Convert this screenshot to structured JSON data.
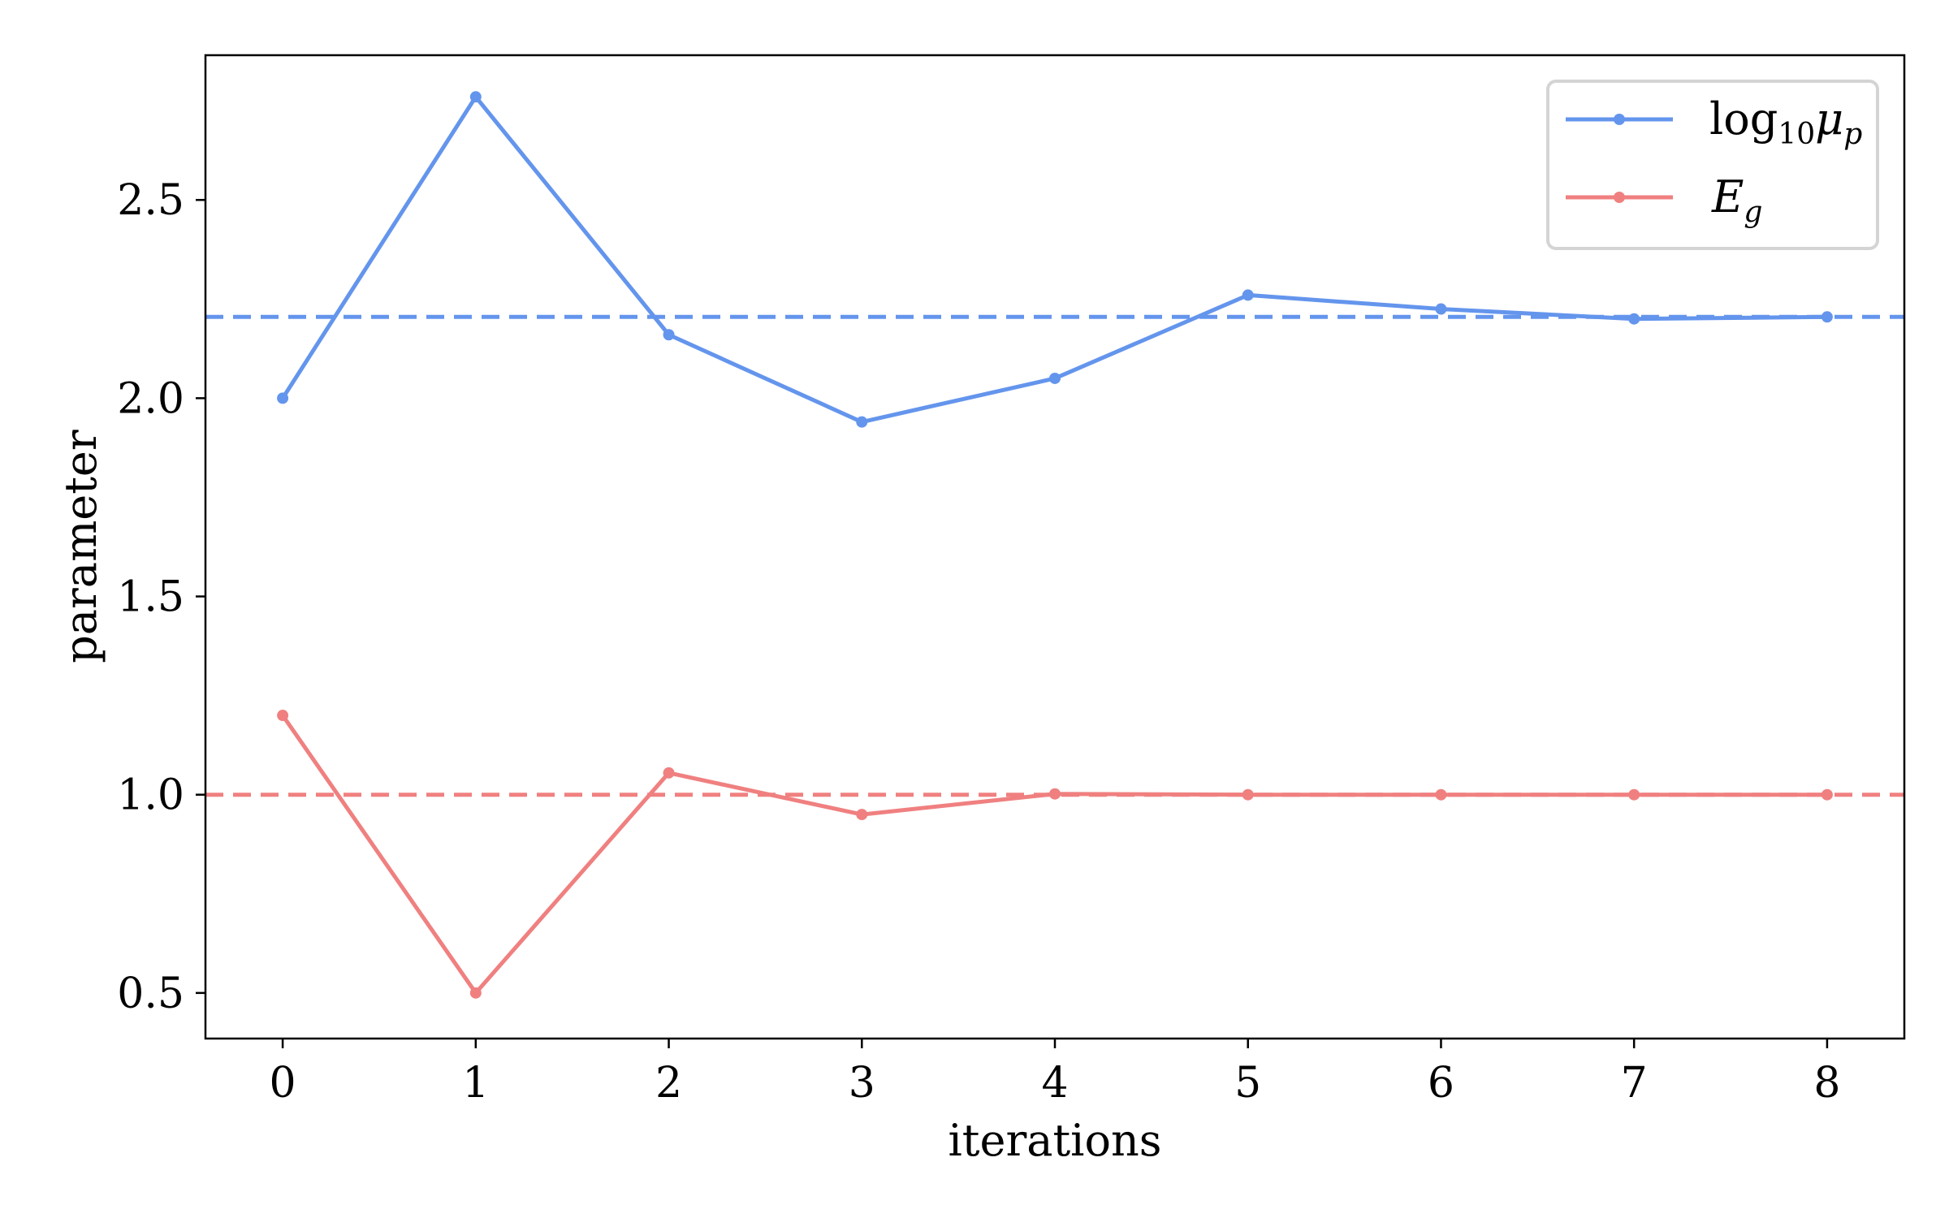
{
  "chart_data": {
    "type": "line",
    "title": "",
    "xlabel": "iterations",
    "ylabel": "parameter",
    "xlim": [
      -0.4,
      8.4
    ],
    "ylim": [
      0.385,
      2.865
    ],
    "xticks": [
      0,
      1,
      2,
      3,
      4,
      5,
      6,
      7,
      8
    ],
    "xtick_labels": [
      "0",
      "1",
      "2",
      "3",
      "4",
      "5",
      "6",
      "7",
      "8"
    ],
    "yticks": [
      0.5,
      1.0,
      1.5,
      2.0,
      2.5
    ],
    "ytick_labels": [
      "0.5",
      "1.0",
      "1.5",
      "2.0",
      "2.5"
    ],
    "grid": false,
    "legend_position": "top-right",
    "series": [
      {
        "key": "log10mu",
        "name": "log10 mu_p",
        "legend_main": "log",
        "legend_sub": "10",
        "legend_symbol": "μ",
        "legend_subscript": "p",
        "color": "#6495ed",
        "x": [
          0,
          1,
          2,
          3,
          4,
          5,
          6,
          7,
          8
        ],
        "values": [
          2.0,
          2.76,
          2.16,
          1.94,
          2.05,
          2.26,
          2.225,
          2.2,
          2.205
        ],
        "reference_value": 2.205
      },
      {
        "key": "Eg",
        "name": "E_g",
        "legend_main": "",
        "legend_sub": "",
        "legend_symbol": "E",
        "legend_subscript": "g",
        "color": "#f08080",
        "x": [
          0,
          1,
          2,
          3,
          4,
          5,
          6,
          7,
          8
        ],
        "values": [
          1.2,
          0.5,
          1.055,
          0.95,
          1.002,
          1.0,
          1.0,
          1.0,
          1.0
        ],
        "reference_value": 1.0
      }
    ]
  }
}
